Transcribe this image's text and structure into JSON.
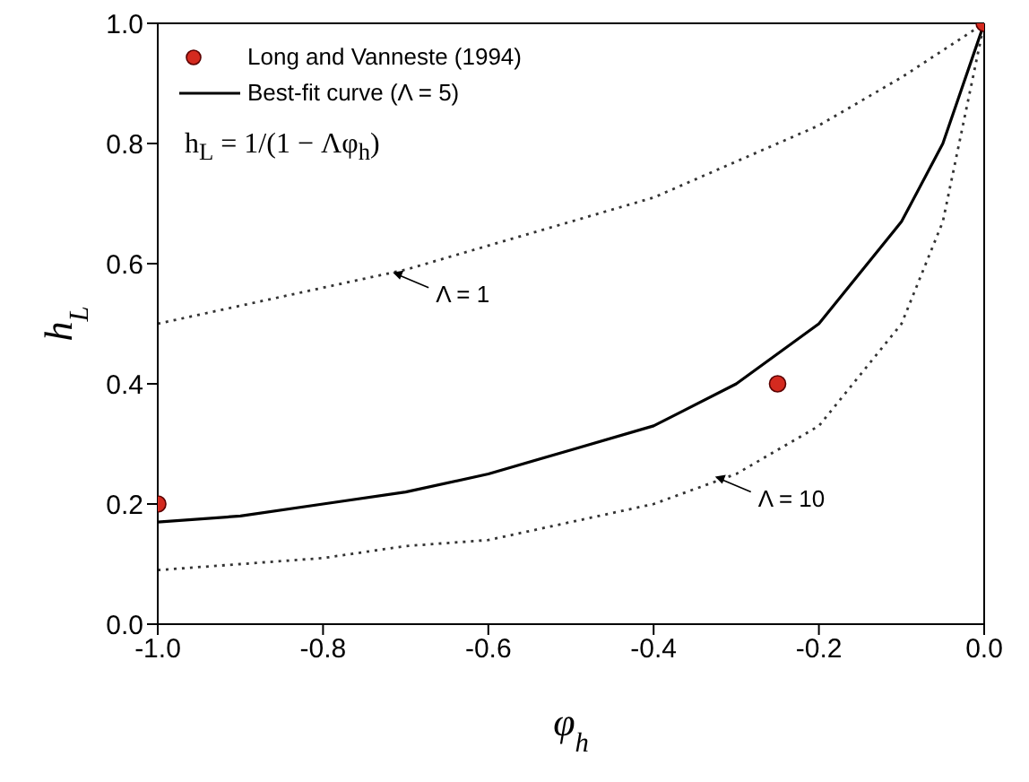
{
  "chart_data": {
    "type": "line",
    "xlabel": "φ$_{h}$",
    "ylabel": "h$_{L}$",
    "xlim": [
      -1,
      0
    ],
    "xticks": [
      {
        "value": -1,
        "label": "-1.0"
      },
      {
        "value": -0.8,
        "label": "-0.8"
      },
      {
        "value": -0.6,
        "label": "-0.6"
      },
      {
        "value": -0.4,
        "label": "-0.4"
      },
      {
        "value": -0.2,
        "label": "-0.2"
      },
      {
        "value": 0,
        "label": "0.0"
      }
    ],
    "ylim": [
      0,
      1
    ],
    "yticks": [
      {
        "value": 0,
        "label": "0.0"
      },
      {
        "value": 0.2,
        "label": "0.2"
      },
      {
        "value": 0.4,
        "label": "0.4"
      },
      {
        "value": 0.6,
        "label": "0.6"
      },
      {
        "value": 0.8,
        "label": "0.8"
      },
      {
        "value": 1,
        "label": "1.0"
      }
    ],
    "grid": false,
    "legend": "top left",
    "series": [
      {
        "name": "Long and Vanneste (1994)",
        "type": "scatter",
        "marker": "circle",
        "color": "#d42a1f",
        "x": [
          -1,
          -0.25,
          0
        ],
        "values": [
          0.2,
          0.4,
          1.0
        ]
      },
      {
        "name": "Best-fit curve (Λ = 5)",
        "marker": "none",
        "line_style": "solid",
        "color": "#000000",
        "x": [
          -1,
          -0.9,
          -0.8,
          -0.7,
          -0.6,
          -0.5,
          -0.4,
          -0.3,
          -0.2,
          -0.1,
          -0.05,
          0
        ],
        "values": [
          0.17,
          0.18,
          0.2,
          0.22,
          0.25,
          0.29,
          0.33,
          0.4,
          0.5,
          0.67,
          0.8,
          1.0
        ]
      },
      {
        "marker": "none",
        "line_style": "dotted",
        "color": "#333333",
        "x": [
          -1,
          -0.9,
          -0.8,
          -0.7,
          -0.6,
          -0.5,
          -0.4,
          -0.3,
          -0.2,
          -0.1,
          0
        ],
        "values": [
          0.5,
          0.53,
          0.56,
          0.59,
          0.63,
          0.67,
          0.71,
          0.77,
          0.83,
          0.91,
          1.0
        ]
      },
      {
        "marker": "none",
        "line_style": "dotted",
        "color": "#333333",
        "x": [
          -1,
          -0.9,
          -0.8,
          -0.7,
          -0.6,
          -0.5,
          -0.4,
          -0.3,
          -0.2,
          -0.1,
          -0.05,
          0
        ],
        "values": [
          0.09,
          0.1,
          0.11,
          0.13,
          0.14,
          0.17,
          0.2,
          0.25,
          0.33,
          0.5,
          0.67,
          1.0
        ]
      }
    ],
    "annotations": [
      "h$_{L}$ = 1/(1 − Λφ$_{h}$)",
      {
        "text": "Λ = 1",
        "x": -0.72,
        "y": 0.59
      },
      {
        "text": "Λ = 10",
        "x": -0.33,
        "y": 0.25
      }
    ]
  }
}
